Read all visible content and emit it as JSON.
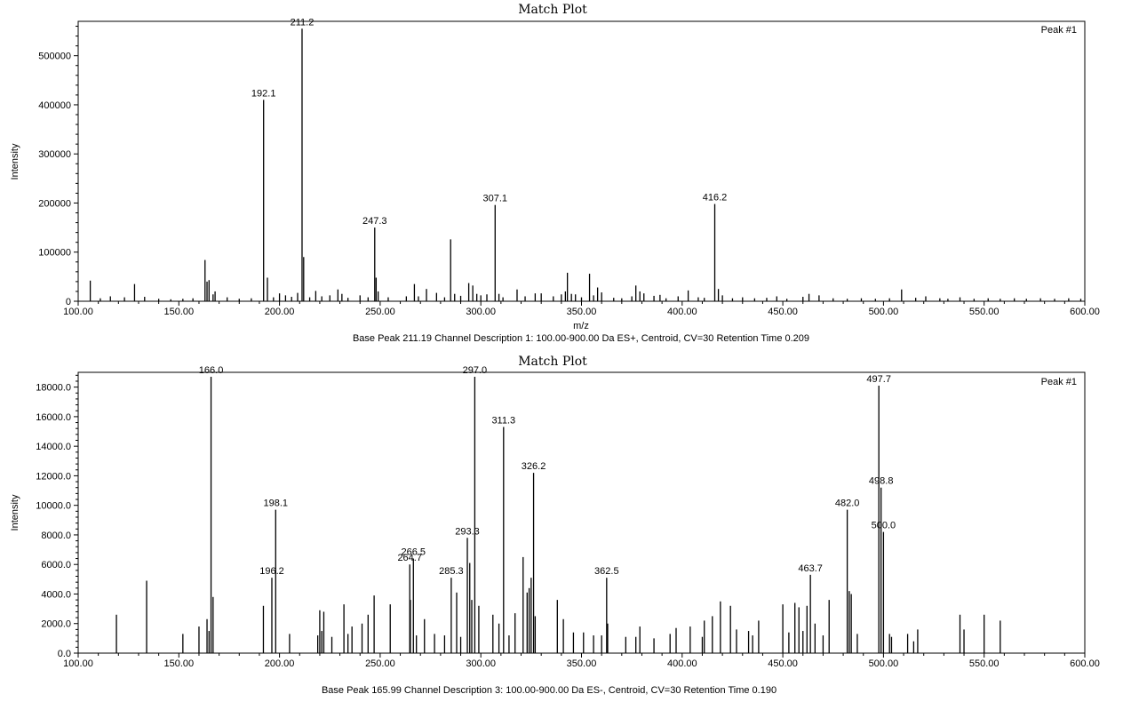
{
  "chart_data": [
    {
      "type": "bar",
      "title": "Match Plot",
      "corner_label": "Peak #1",
      "xlabel": "m/z",
      "ylabel": "Intensity",
      "caption": "Base Peak 211.19 Channel Description 1: 100.00-900.00 Da ES+, Centroid, CV=30 Retention Time 0.209",
      "xlim": [
        100,
        600
      ],
      "ylim": [
        0,
        570000
      ],
      "xticks": [
        100,
        150,
        200,
        250,
        300,
        350,
        400,
        450,
        500,
        550,
        600
      ],
      "xtick_labels": [
        "100.00",
        "150.00",
        "200.00",
        "250.00",
        "300.00",
        "350.00",
        "400.00",
        "450.00",
        "500.00",
        "550.00",
        "600.00"
      ],
      "yticks": [
        0,
        100000,
        200000,
        300000,
        400000,
        500000
      ],
      "ytick_labels": [
        "0",
        "100000",
        "200000",
        "300000",
        "400000",
        "500000"
      ],
      "peaks": [
        {
          "mz": 106,
          "i": 42000
        },
        {
          "mz": 111,
          "i": 6000
        },
        {
          "mz": 116,
          "i": 10000
        },
        {
          "mz": 123,
          "i": 8000
        },
        {
          "mz": 128,
          "i": 35000
        },
        {
          "mz": 133,
          "i": 9000
        },
        {
          "mz": 140,
          "i": 5000
        },
        {
          "mz": 146,
          "i": 4000
        },
        {
          "mz": 152,
          "i": 5000
        },
        {
          "mz": 157,
          "i": 6000
        },
        {
          "mz": 163,
          "i": 84000
        },
        {
          "mz": 164,
          "i": 40000
        },
        {
          "mz": 165,
          "i": 43000
        },
        {
          "mz": 167,
          "i": 14000
        },
        {
          "mz": 168,
          "i": 20000
        },
        {
          "mz": 174,
          "i": 8000
        },
        {
          "mz": 180,
          "i": 5000
        },
        {
          "mz": 186,
          "i": 6000
        },
        {
          "mz": 192.1,
          "i": 410000,
          "label": "192.1"
        },
        {
          "mz": 194,
          "i": 48000
        },
        {
          "mz": 197,
          "i": 8000
        },
        {
          "mz": 200,
          "i": 16000
        },
        {
          "mz": 203,
          "i": 12000
        },
        {
          "mz": 206,
          "i": 9000
        },
        {
          "mz": 209,
          "i": 17000
        },
        {
          "mz": 211.2,
          "i": 555000,
          "label": "211.2"
        },
        {
          "mz": 212,
          "i": 90000
        },
        {
          "mz": 215,
          "i": 8000
        },
        {
          "mz": 218,
          "i": 21000
        },
        {
          "mz": 221,
          "i": 10000
        },
        {
          "mz": 225,
          "i": 12000
        },
        {
          "mz": 229,
          "i": 24000
        },
        {
          "mz": 231,
          "i": 15000
        },
        {
          "mz": 234,
          "i": 7000
        },
        {
          "mz": 240,
          "i": 12000
        },
        {
          "mz": 244,
          "i": 8000
        },
        {
          "mz": 247.3,
          "i": 150000,
          "label": "247.3"
        },
        {
          "mz": 248,
          "i": 48000
        },
        {
          "mz": 249,
          "i": 20000
        },
        {
          "mz": 254,
          "i": 8000
        },
        {
          "mz": 263,
          "i": 10000
        },
        {
          "mz": 267,
          "i": 35000
        },
        {
          "mz": 269,
          "i": 10000
        },
        {
          "mz": 273,
          "i": 25000
        },
        {
          "mz": 278,
          "i": 17000
        },
        {
          "mz": 282,
          "i": 8000
        },
        {
          "mz": 285,
          "i": 126000
        },
        {
          "mz": 287,
          "i": 15000
        },
        {
          "mz": 290,
          "i": 11000
        },
        {
          "mz": 294,
          "i": 37000
        },
        {
          "mz": 296,
          "i": 32000
        },
        {
          "mz": 298,
          "i": 15000
        },
        {
          "mz": 300,
          "i": 12000
        },
        {
          "mz": 303,
          "i": 14000
        },
        {
          "mz": 307.1,
          "i": 196000,
          "label": "307.1"
        },
        {
          "mz": 309,
          "i": 15000
        },
        {
          "mz": 311,
          "i": 8000
        },
        {
          "mz": 318,
          "i": 24000
        },
        {
          "mz": 322,
          "i": 10000
        },
        {
          "mz": 327,
          "i": 16000
        },
        {
          "mz": 330,
          "i": 16000
        },
        {
          "mz": 336,
          "i": 10000
        },
        {
          "mz": 340,
          "i": 14000
        },
        {
          "mz": 342,
          "i": 20000
        },
        {
          "mz": 343,
          "i": 58000
        },
        {
          "mz": 345,
          "i": 15000
        },
        {
          "mz": 347,
          "i": 14000
        },
        {
          "mz": 350,
          "i": 8000
        },
        {
          "mz": 354,
          "i": 56000
        },
        {
          "mz": 356,
          "i": 12000
        },
        {
          "mz": 358,
          "i": 28000
        },
        {
          "mz": 360,
          "i": 18000
        },
        {
          "mz": 366,
          "i": 7000
        },
        {
          "mz": 370,
          "i": 6000
        },
        {
          "mz": 375,
          "i": 10000
        },
        {
          "mz": 377,
          "i": 32000
        },
        {
          "mz": 379,
          "i": 20000
        },
        {
          "mz": 381,
          "i": 16000
        },
        {
          "mz": 386,
          "i": 11000
        },
        {
          "mz": 389,
          "i": 13000
        },
        {
          "mz": 392,
          "i": 6000
        },
        {
          "mz": 398,
          "i": 10000
        },
        {
          "mz": 403,
          "i": 22000
        },
        {
          "mz": 408,
          "i": 8000
        },
        {
          "mz": 411,
          "i": 7000
        },
        {
          "mz": 416.2,
          "i": 198000,
          "label": "416.2"
        },
        {
          "mz": 418,
          "i": 25000
        },
        {
          "mz": 420,
          "i": 12000
        },
        {
          "mz": 425,
          "i": 6000
        },
        {
          "mz": 430,
          "i": 8000
        },
        {
          "mz": 436,
          "i": 6000
        },
        {
          "mz": 442,
          "i": 7000
        },
        {
          "mz": 447,
          "i": 10000
        },
        {
          "mz": 452,
          "i": 5000
        },
        {
          "mz": 460,
          "i": 9000
        },
        {
          "mz": 463,
          "i": 15000
        },
        {
          "mz": 468,
          "i": 12000
        },
        {
          "mz": 475,
          "i": 6000
        },
        {
          "mz": 482,
          "i": 5000
        },
        {
          "mz": 489,
          "i": 6000
        },
        {
          "mz": 496,
          "i": 5000
        },
        {
          "mz": 503,
          "i": 6000
        },
        {
          "mz": 509,
          "i": 24000
        },
        {
          "mz": 516,
          "i": 7000
        },
        {
          "mz": 521,
          "i": 10000
        },
        {
          "mz": 528,
          "i": 6000
        },
        {
          "mz": 532,
          "i": 5000
        },
        {
          "mz": 538,
          "i": 8000
        },
        {
          "mz": 545,
          "i": 5000
        },
        {
          "mz": 552,
          "i": 6000
        },
        {
          "mz": 558,
          "i": 5000
        },
        {
          "mz": 565,
          "i": 6000
        },
        {
          "mz": 571,
          "i": 5000
        },
        {
          "mz": 578,
          "i": 6000
        },
        {
          "mz": 585,
          "i": 5000
        },
        {
          "mz": 592,
          "i": 6000
        },
        {
          "mz": 598,
          "i": 5000
        }
      ]
    },
    {
      "type": "bar",
      "title": "Match Plot",
      "corner_label": "Peak #1",
      "xlabel": "",
      "ylabel": "Intensity",
      "caption": "Base Peak 165.99 Channel Description 3: 100.00-900.00 Da ES-, Centroid, CV=30 Retention Time 0.190",
      "xlim": [
        100,
        600
      ],
      "ylim": [
        0,
        19000
      ],
      "xticks": [
        100,
        150,
        200,
        250,
        300,
        350,
        400,
        450,
        500,
        550,
        600
      ],
      "xtick_labels": [
        "100.00",
        "150.00",
        "200.00",
        "250.00",
        "300.00",
        "350.00",
        "400.00",
        "450.00",
        "500.00",
        "550.00",
        "600.00"
      ],
      "yticks": [
        0,
        2000,
        4000,
        6000,
        8000,
        10000,
        12000,
        14000,
        16000,
        18000
      ],
      "ytick_labels": [
        "0.0",
        "2000.0",
        "4000.0",
        "6000.0",
        "8000.0",
        "10000.0",
        "12000.0",
        "14000.0",
        "16000.0",
        "18000.0"
      ],
      "peaks": [
        {
          "mz": 119,
          "i": 2600
        },
        {
          "mz": 134,
          "i": 4900
        },
        {
          "mz": 152,
          "i": 1300
        },
        {
          "mz": 160,
          "i": 1800
        },
        {
          "mz": 164,
          "i": 2300
        },
        {
          "mz": 165,
          "i": 1500
        },
        {
          "mz": 166.0,
          "i": 18700,
          "label": "166.0"
        },
        {
          "mz": 167,
          "i": 3800
        },
        {
          "mz": 192,
          "i": 3200
        },
        {
          "mz": 196.2,
          "i": 5100,
          "label": "196.2"
        },
        {
          "mz": 198.1,
          "i": 9700,
          "label": "198.1"
        },
        {
          "mz": 205,
          "i": 1300
        },
        {
          "mz": 219,
          "i": 1200
        },
        {
          "mz": 220,
          "i": 2900
        },
        {
          "mz": 221,
          "i": 1500
        },
        {
          "mz": 222,
          "i": 2800
        },
        {
          "mz": 226,
          "i": 1100
        },
        {
          "mz": 232,
          "i": 3300
        },
        {
          "mz": 234,
          "i": 1300
        },
        {
          "mz": 236,
          "i": 1800
        },
        {
          "mz": 241,
          "i": 2000
        },
        {
          "mz": 244,
          "i": 2600
        },
        {
          "mz": 247,
          "i": 3900
        },
        {
          "mz": 255,
          "i": 3300
        },
        {
          "mz": 264.7,
          "i": 6000,
          "label": "264.7"
        },
        {
          "mz": 265,
          "i": 3600
        },
        {
          "mz": 266.5,
          "i": 6400,
          "label": "266.5"
        },
        {
          "mz": 268,
          "i": 1200
        },
        {
          "mz": 272,
          "i": 2300
        },
        {
          "mz": 277,
          "i": 1300
        },
        {
          "mz": 282,
          "i": 1200
        },
        {
          "mz": 285.3,
          "i": 5100,
          "label": "285.3"
        },
        {
          "mz": 288,
          "i": 4100
        },
        {
          "mz": 290,
          "i": 1100
        },
        {
          "mz": 293.3,
          "i": 7800,
          "label": "293.3"
        },
        {
          "mz": 294.5,
          "i": 6100
        },
        {
          "mz": 295.5,
          "i": 3600
        },
        {
          "mz": 297.0,
          "i": 18700,
          "label": "297.0"
        },
        {
          "mz": 299,
          "i": 3200
        },
        {
          "mz": 306,
          "i": 2600
        },
        {
          "mz": 309,
          "i": 2000
        },
        {
          "mz": 311.3,
          "i": 15300,
          "label": "311.3"
        },
        {
          "mz": 314,
          "i": 1200
        },
        {
          "mz": 317,
          "i": 2700
        },
        {
          "mz": 321,
          "i": 6500
        },
        {
          "mz": 323,
          "i": 4100
        },
        {
          "mz": 324,
          "i": 4400
        },
        {
          "mz": 325,
          "i": 5100
        },
        {
          "mz": 326.2,
          "i": 12200,
          "label": "326.2"
        },
        {
          "mz": 327,
          "i": 2500
        },
        {
          "mz": 338,
          "i": 3600
        },
        {
          "mz": 341,
          "i": 2300
        },
        {
          "mz": 346,
          "i": 1400
        },
        {
          "mz": 351,
          "i": 1400
        },
        {
          "mz": 356,
          "i": 1200
        },
        {
          "mz": 360,
          "i": 1200
        },
        {
          "mz": 362.5,
          "i": 5100,
          "label": "362.5"
        },
        {
          "mz": 363,
          "i": 2000
        },
        {
          "mz": 372,
          "i": 1100
        },
        {
          "mz": 377,
          "i": 1100
        },
        {
          "mz": 379,
          "i": 1800
        },
        {
          "mz": 386,
          "i": 1000
        },
        {
          "mz": 394,
          "i": 1300
        },
        {
          "mz": 397,
          "i": 1700
        },
        {
          "mz": 404,
          "i": 1800
        },
        {
          "mz": 410,
          "i": 1100
        },
        {
          "mz": 411,
          "i": 2200
        },
        {
          "mz": 415,
          "i": 2500
        },
        {
          "mz": 419,
          "i": 3500
        },
        {
          "mz": 424,
          "i": 3200
        },
        {
          "mz": 427,
          "i": 1600
        },
        {
          "mz": 433,
          "i": 1500
        },
        {
          "mz": 435,
          "i": 1200
        },
        {
          "mz": 438,
          "i": 2200
        },
        {
          "mz": 450,
          "i": 3300
        },
        {
          "mz": 453,
          "i": 1400
        },
        {
          "mz": 456,
          "i": 3400
        },
        {
          "mz": 458,
          "i": 3100
        },
        {
          "mz": 460,
          "i": 1500
        },
        {
          "mz": 462,
          "i": 3200
        },
        {
          "mz": 463.7,
          "i": 5300,
          "label": "463.7"
        },
        {
          "mz": 466,
          "i": 2000
        },
        {
          "mz": 470,
          "i": 1200
        },
        {
          "mz": 473,
          "i": 3600
        },
        {
          "mz": 482.0,
          "i": 9700,
          "label": "482.0"
        },
        {
          "mz": 483,
          "i": 4200
        },
        {
          "mz": 484,
          "i": 4000
        },
        {
          "mz": 487,
          "i": 1300
        },
        {
          "mz": 497.7,
          "i": 18100,
          "label": "497.7"
        },
        {
          "mz": 498.8,
          "i": 11200,
          "label": "498.8"
        },
        {
          "mz": 500.0,
          "i": 8200,
          "label": "500.0"
        },
        {
          "mz": 503,
          "i": 1300
        },
        {
          "mz": 504,
          "i": 1100
        },
        {
          "mz": 512,
          "i": 1300
        },
        {
          "mz": 515,
          "i": 800
        },
        {
          "mz": 517,
          "i": 1600
        },
        {
          "mz": 538,
          "i": 2600
        },
        {
          "mz": 540,
          "i": 1600
        },
        {
          "mz": 550,
          "i": 2600
        },
        {
          "mz": 558,
          "i": 2200
        }
      ]
    }
  ]
}
